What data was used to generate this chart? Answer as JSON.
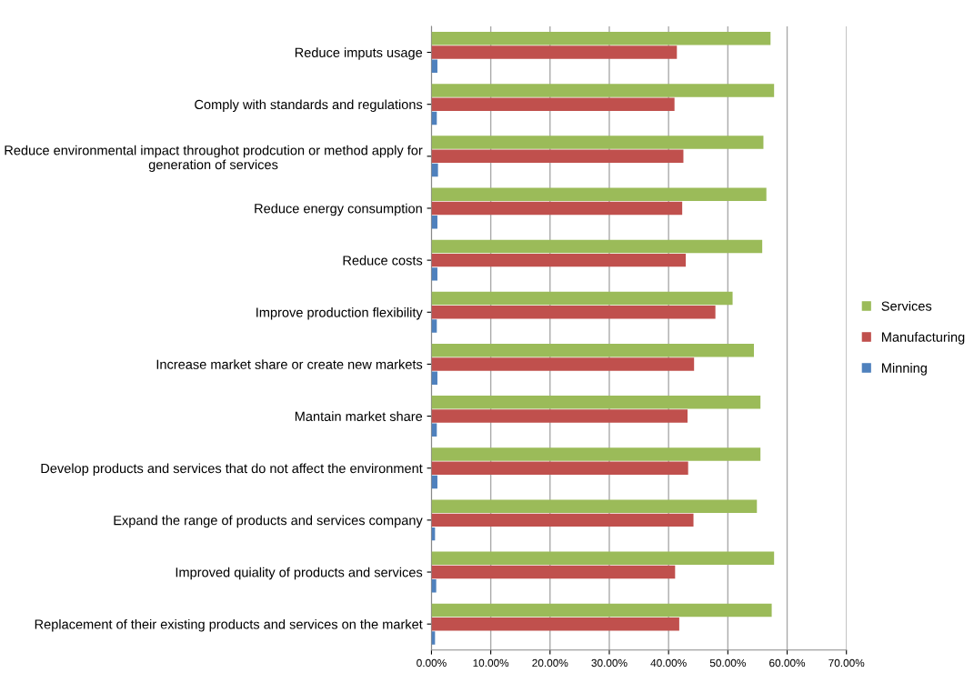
{
  "chart_data": {
    "type": "bar",
    "orientation": "horizontal",
    "categories": [
      "Reduce imputs usage",
      "Comply with standards and regulations",
      "Reduce environmental impact throughot prodcution or method apply for\ngeneration of services",
      "Reduce energy consumption",
      "Reduce costs",
      "Improve production flexibility",
      "Increase market share or create new markets",
      "Mantain market share",
      "Develop products and services that do not affect the environment",
      "Expand the range of products and services company",
      "Improved quiality of products and services",
      "Replacement of their existing products and services on the market"
    ],
    "series": [
      {
        "name": "Services",
        "color": "#9bbb59",
        "values": [
          57.2,
          57.8,
          56.0,
          56.5,
          55.8,
          50.8,
          54.4,
          55.5,
          55.5,
          54.9,
          57.8,
          57.4
        ]
      },
      {
        "name": "Manufacturing",
        "color": "#c0504d",
        "values": [
          41.4,
          41.0,
          42.5,
          42.3,
          42.9,
          47.9,
          44.3,
          43.2,
          43.3,
          44.2,
          41.1,
          41.8
        ]
      },
      {
        "name": "Minning",
        "color": "#4f81bd",
        "values": [
          1.0,
          0.9,
          1.1,
          1.0,
          1.0,
          0.9,
          1.0,
          0.9,
          1.0,
          0.6,
          0.8,
          0.6
        ]
      }
    ],
    "xlim": [
      0,
      70
    ],
    "xticks": [
      {
        "value": 0,
        "label": "0.00%"
      },
      {
        "value": 10,
        "label": "10.00%"
      },
      {
        "value": 20,
        "label": "20.00%"
      },
      {
        "value": 30,
        "label": "30.00%"
      },
      {
        "value": 40,
        "label": "40.00%"
      },
      {
        "value": 50,
        "label": "50.00%"
      },
      {
        "value": 60,
        "label": "60.00%"
      },
      {
        "value": 70,
        "label": "70.00%"
      }
    ],
    "grid": "x",
    "legend": "right"
  }
}
